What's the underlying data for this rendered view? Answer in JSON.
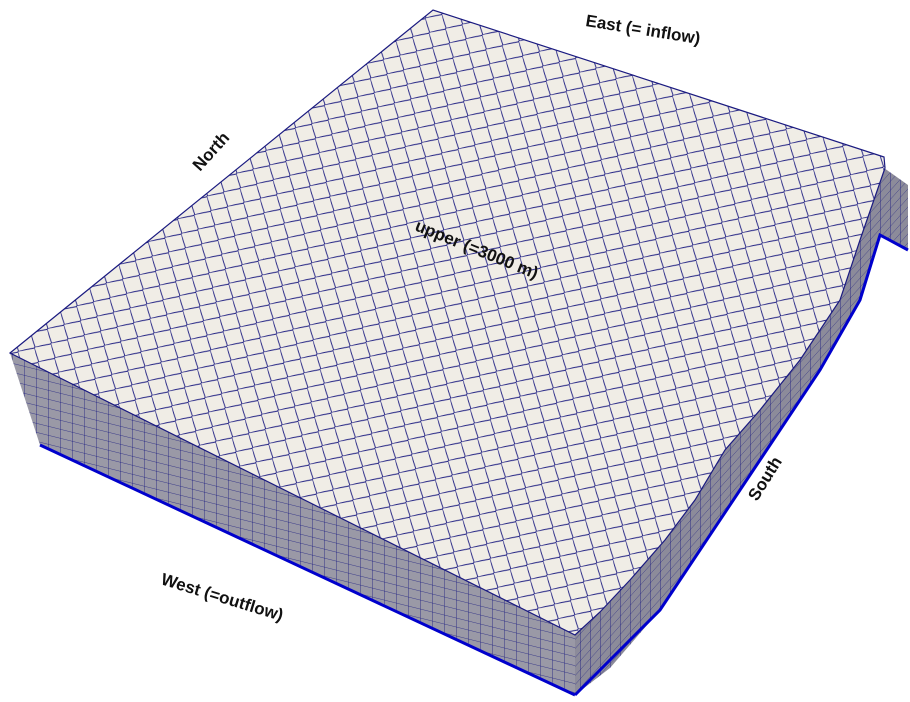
{
  "labels": {
    "east": "East (= inflow)",
    "north": "North",
    "upper": "upper (=3000 m)",
    "south": "South",
    "west": "West (=outflow)"
  },
  "colors": {
    "background": "#ffffff",
    "surface": "#f0ede6",
    "mesh_line": "#1a1a80",
    "side_face": "#8f8f9c",
    "side_edge": "#0000cc"
  }
}
